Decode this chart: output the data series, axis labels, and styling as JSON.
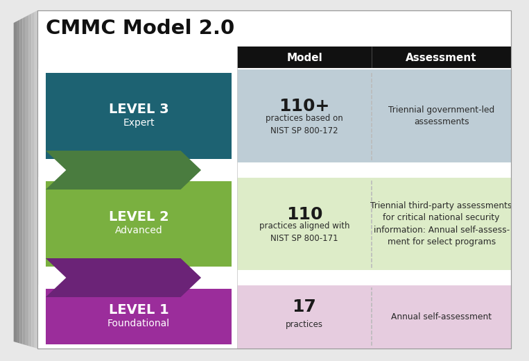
{
  "title": "CMMC Model 2.0",
  "header_bg": "#111111",
  "col_headers": [
    "Model",
    "Assessment"
  ],
  "levels": [
    {
      "level_num": "LEVEL 3",
      "level_name": "Expert",
      "level_color": "#1d6272",
      "row_bg": "#becdd6",
      "model_number": "110+",
      "model_desc": "practices based on\nNIST SP 800-172",
      "assessment": "Triennial government-led\nassessments",
      "chevron_color": "#4a7c3f",
      "chevron_dark": "#3a6030"
    },
    {
      "level_num": "LEVEL 2",
      "level_name": "Advanced",
      "level_color": "#7ab040",
      "row_bg": "#ddecc8",
      "model_number": "110",
      "model_desc": "practices aligned with\nNIST SP 800-171",
      "assessment": "Triennial third-party assessments\nfor critical national security\ninformation: Annual self-assess-\nment for select programs",
      "chevron_color": "#6b2377",
      "chevron_dark": "#531a5c"
    },
    {
      "level_num": "LEVEL 1",
      "level_name": "Foundational",
      "level_color": "#9b2d9b",
      "row_bg": "#e6ccdf",
      "model_number": "17",
      "model_desc": "practices",
      "assessment": "Annual self-assessment",
      "chevron_color": null,
      "chevron_dark": null
    }
  ],
  "outer_bg": "#e8e8e8",
  "main_bg": "#f2f2f2",
  "side3d_light": "#d0d0d0",
  "side3d_dark": "#a8a8a8",
  "side3d_gradient": "#b8b8b8"
}
